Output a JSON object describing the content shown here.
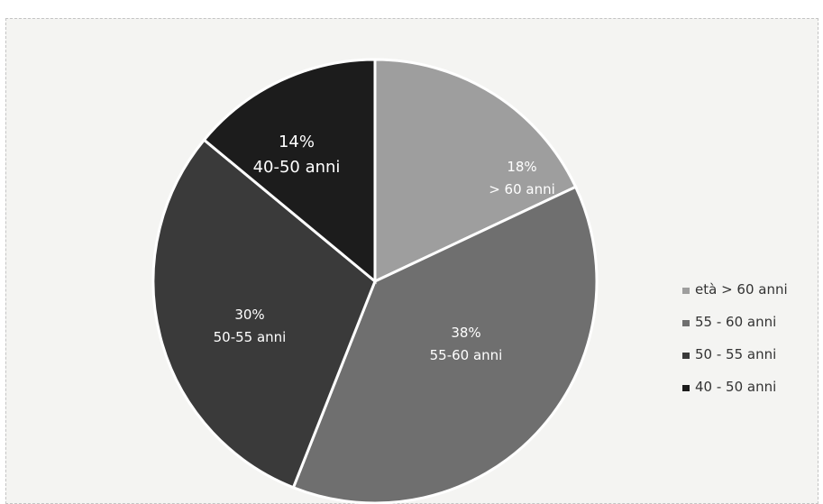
{
  "clipped_title_fragment": "",
  "chart_data": {
    "type": "pie",
    "title": "",
    "slices": [
      {
        "legend": "età > 60 anni",
        "percent_label": "18%",
        "range_label": "> 60 anni",
        "value": 18,
        "color": "#9e9e9e"
      },
      {
        "legend": "55 -  60 anni",
        "percent_label": "38%",
        "range_label": "55-60 anni",
        "value": 38,
        "color": "#6f6f6f"
      },
      {
        "legend": "50 - 55 anni",
        "percent_label": "30%",
        "range_label": "50-55 anni",
        "value": 30,
        "color": "#3a3a3a"
      },
      {
        "legend": "40 - 50 anni",
        "percent_label": "14%",
        "range_label": "40-50 anni",
        "value": 14,
        "color": "#1c1c1c"
      }
    ],
    "start_angle_deg": 0,
    "direction": "clockwise",
    "legend_position": "right",
    "colors": {
      "separator": "#ffffff",
      "legend_text": "#333333",
      "background": "#f4f4f2"
    }
  }
}
